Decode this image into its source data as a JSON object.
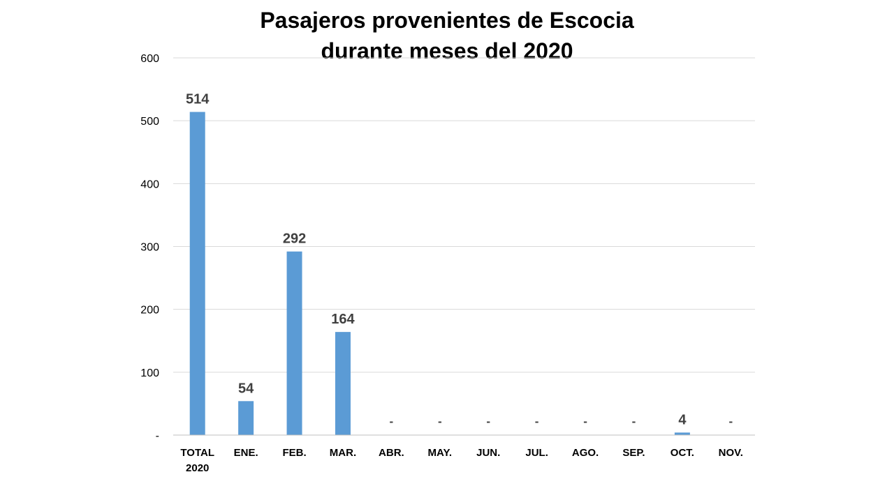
{
  "chart_data": {
    "type": "bar",
    "title": [
      "Pasajeros provenientes de Escocia",
      "durante meses del 2020"
    ],
    "categories": [
      [
        "TOTAL",
        "2020"
      ],
      [
        "ENE."
      ],
      [
        "FEB."
      ],
      [
        "MAR."
      ],
      [
        "ABR."
      ],
      [
        "MAY."
      ],
      [
        "JUN."
      ],
      [
        "JUL."
      ],
      [
        "AGO."
      ],
      [
        "SEP."
      ],
      [
        "OCT."
      ],
      [
        "NOV."
      ]
    ],
    "values": [
      514,
      54,
      292,
      164,
      0,
      0,
      0,
      0,
      0,
      0,
      4,
      0
    ],
    "data_labels": [
      "514",
      "54",
      "292",
      "164",
      "-",
      "-",
      "-",
      "-",
      "-",
      "-",
      "4",
      "-"
    ],
    "ylim": [
      0,
      600
    ],
    "yticks": [
      0,
      100,
      200,
      300,
      400,
      500,
      600
    ],
    "ytick_labels": [
      "-",
      "100",
      "200",
      "300",
      "400",
      "500",
      "600"
    ],
    "grid": true,
    "legend": "none",
    "bar_color": "#5b9bd5"
  }
}
